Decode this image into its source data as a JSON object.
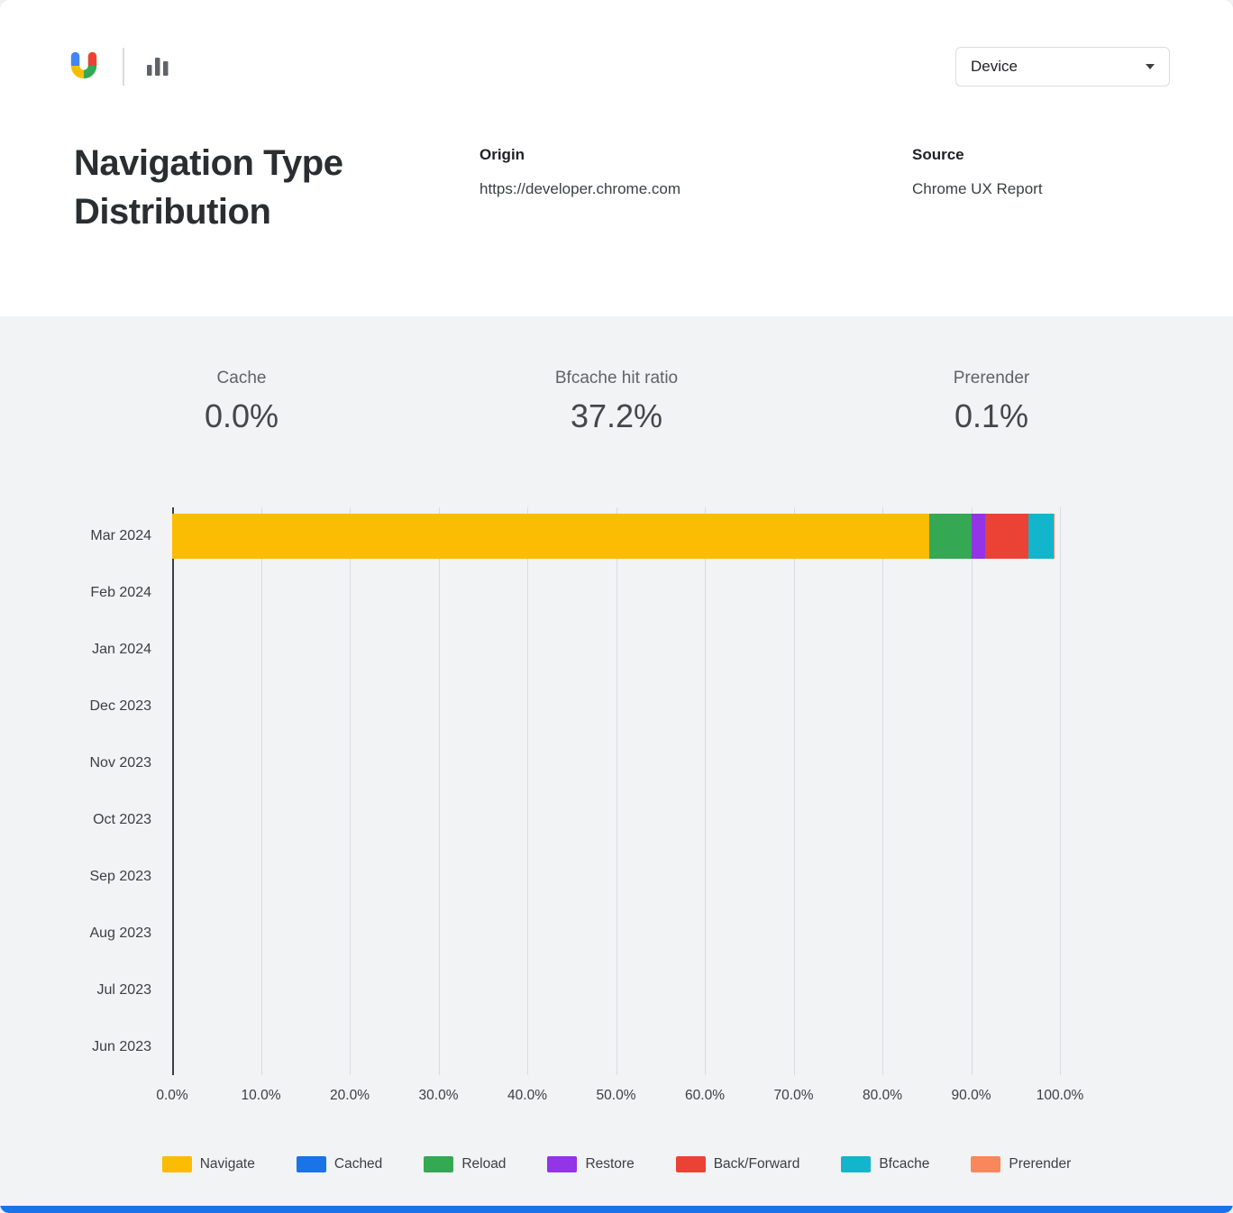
{
  "header": {
    "title": "Navigation Type Distribution",
    "device_filter": {
      "value": "Device"
    },
    "origin": {
      "label": "Origin",
      "value": "https://developer.chrome.com"
    },
    "source": {
      "label": "Source",
      "value": "Chrome UX Report"
    }
  },
  "stats": [
    {
      "label": "Cache",
      "value": "0.0%"
    },
    {
      "label": "Bfcache hit ratio",
      "value": "37.2%"
    },
    {
      "label": "Prerender",
      "value": "0.1%"
    }
  ],
  "chart_data": {
    "type": "bar",
    "orientation": "horizontal",
    "stacked": true,
    "title": "Navigation Type Distribution",
    "categories": [
      "Mar 2024",
      "Feb 2024",
      "Jan 2024",
      "Dec 2023",
      "Nov 2023",
      "Oct 2023",
      "Sep 2023",
      "Aug 2023",
      "Jul 2023",
      "Jun 2023"
    ],
    "series": [
      {
        "name": "Navigate",
        "color": "#FBBC04",
        "values": [
          85.3,
          0,
          0,
          0,
          0,
          0,
          0,
          0,
          0,
          0
        ]
      },
      {
        "name": "Cached",
        "color": "#1A73E8",
        "values": [
          0.0,
          0,
          0,
          0,
          0,
          0,
          0,
          0,
          0,
          0
        ]
      },
      {
        "name": "Reload",
        "color": "#34A853",
        "values": [
          4.8,
          0,
          0,
          0,
          0,
          0,
          0,
          0,
          0,
          0
        ]
      },
      {
        "name": "Restore",
        "color": "#9334E6",
        "values": [
          1.5,
          0,
          0,
          0,
          0,
          0,
          0,
          0,
          0,
          0
        ]
      },
      {
        "name": "Back/Forward",
        "color": "#EA4335",
        "values": [
          4.8,
          0,
          0,
          0,
          0,
          0,
          0,
          0,
          0,
          0
        ]
      },
      {
        "name": "Bfcache",
        "color": "#12B5CB",
        "values": [
          2.9,
          0,
          0,
          0,
          0,
          0,
          0,
          0,
          0,
          0
        ]
      },
      {
        "name": "Prerender",
        "color": "#F9875C",
        "values": [
          0.1,
          0,
          0,
          0,
          0,
          0,
          0,
          0,
          0,
          0
        ]
      }
    ],
    "x_ticks": [
      "0.0%",
      "10.0%",
      "20.0%",
      "30.0%",
      "40.0%",
      "50.0%",
      "60.0%",
      "70.0%",
      "80.0%",
      "90.0%",
      "100.0%"
    ],
    "xlim": [
      0,
      100
    ],
    "grid": true,
    "legend_position": "bottom"
  }
}
